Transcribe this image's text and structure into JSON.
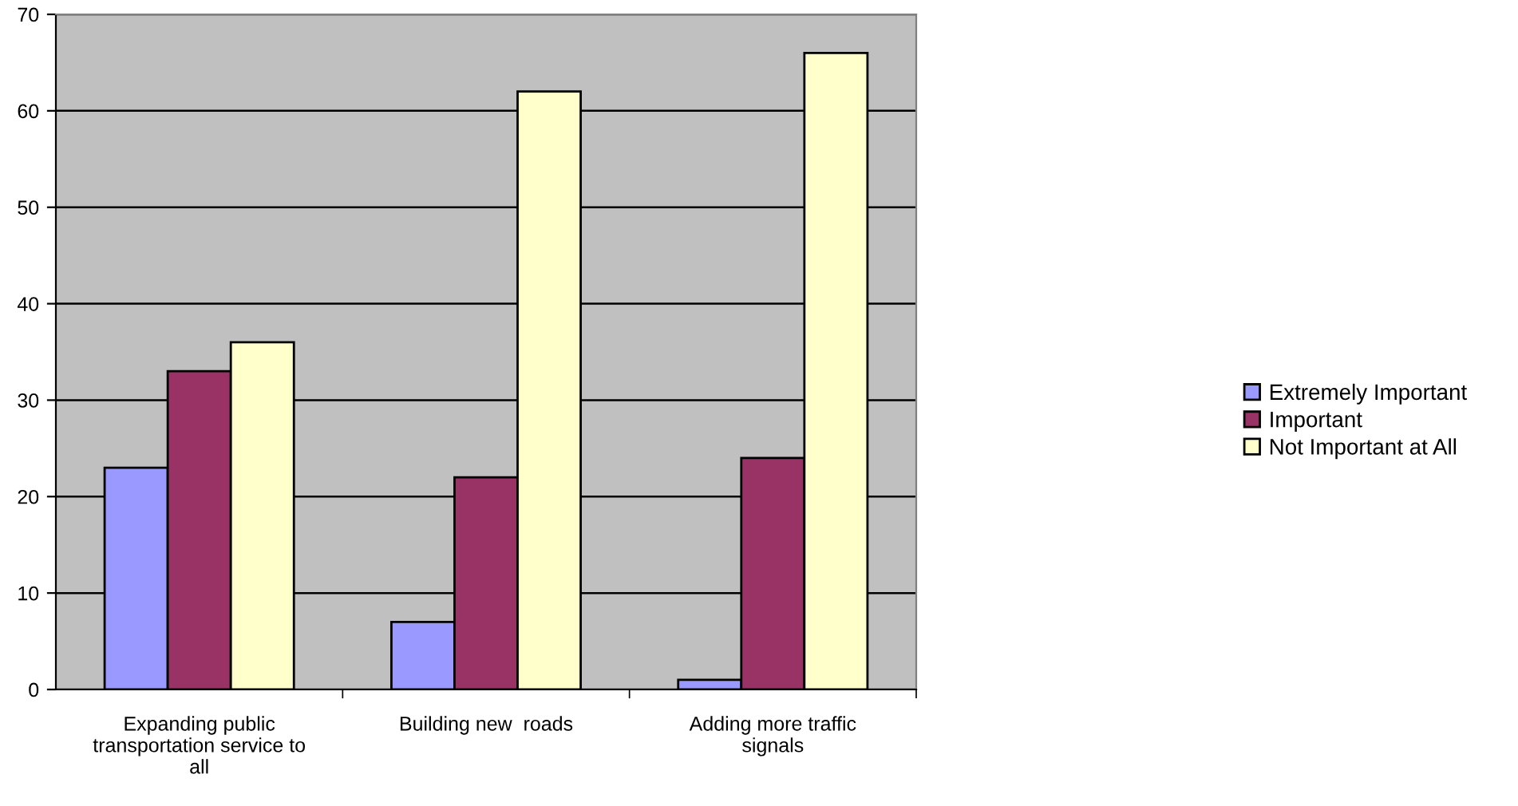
{
  "chart_data": {
    "type": "bar",
    "categories": [
      "Expanding public\ntransportation service to\nall",
      "Building new  roads",
      "Adding more traffic\nsignals"
    ],
    "series": [
      {
        "name": "Extremely Important",
        "color": "#9999ff",
        "values": [
          23,
          7,
          1
        ]
      },
      {
        "name": "Important",
        "color": "#993366",
        "values": [
          33,
          22,
          24
        ]
      },
      {
        "name": "Not Important at All",
        "color": "#ffffcc",
        "values": [
          36,
          62,
          66
        ]
      }
    ],
    "ylim": [
      0,
      70
    ],
    "yticks": [
      0,
      10,
      20,
      30,
      40,
      50,
      60,
      70
    ],
    "grid": "y",
    "legend": "right"
  }
}
